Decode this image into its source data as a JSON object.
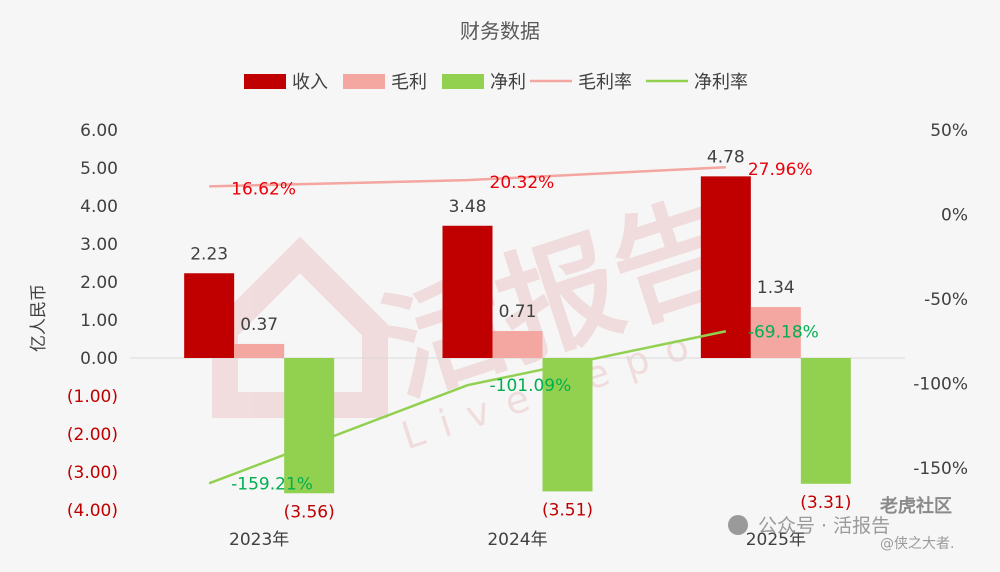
{
  "chart_data": {
    "type": "bar",
    "title": "财务数据",
    "ylabel": "亿人民币",
    "categories": [
      "2023年",
      "2024年",
      "2025年"
    ],
    "ylim": [
      -4,
      6
    ],
    "y2lim": [
      -175,
      50
    ],
    "y_ticks": [
      "6.00",
      "5.00",
      "4.00",
      "3.00",
      "2.00",
      "1.00",
      "0.00",
      "(1.00)",
      "(2.00)",
      "(3.00)",
      "(4.00)"
    ],
    "y2_ticks": [
      "50%",
      "0%",
      "-50%",
      "-100%",
      "-150%"
    ],
    "legend": [
      "收入",
      "毛利",
      "净利",
      "毛利率",
      "净利率"
    ],
    "legend_position": "top",
    "series": [
      {
        "name": "收入",
        "kind": "bar",
        "axis": "left",
        "color": "#c00000",
        "values": [
          2.23,
          3.48,
          4.78
        ],
        "labels": [
          "2.23",
          "3.48",
          "4.78"
        ]
      },
      {
        "name": "毛利",
        "kind": "bar",
        "axis": "left",
        "color": "#f4a6a0",
        "values": [
          0.37,
          0.71,
          1.34
        ],
        "labels": [
          "0.37",
          "0.71",
          "1.34"
        ]
      },
      {
        "name": "净利",
        "kind": "bar",
        "axis": "left",
        "color": "#92d050",
        "values": [
          -3.56,
          -3.51,
          -3.31
        ],
        "labels": [
          "(3.56)",
          "(3.51)",
          "(3.31)"
        ]
      },
      {
        "name": "毛利率",
        "kind": "line",
        "axis": "right",
        "color": "#f4a6a0",
        "values": [
          16.62,
          20.32,
          27.96
        ],
        "labels": [
          "16.62%",
          "20.32%",
          "27.96%"
        ]
      },
      {
        "name": "净利率",
        "kind": "line",
        "axis": "right",
        "color": "#92d050",
        "values": [
          -159.21,
          -101.09,
          -69.18
        ],
        "labels": [
          "-159.21%",
          "-101.09%",
          "-69.18%"
        ]
      }
    ],
    "grid": false
  },
  "watermark": {
    "text": "活报告",
    "sub": "LiveReport"
  },
  "credit": {
    "line1": "公众号 · 活报告",
    "line2": "老虎社区",
    "line3": "@侠之大者."
  },
  "colors": {
    "label_red": "#e8000b",
    "label_green": "#00b050",
    "text_dark": "#404040",
    "axis_gray": "#595959"
  }
}
